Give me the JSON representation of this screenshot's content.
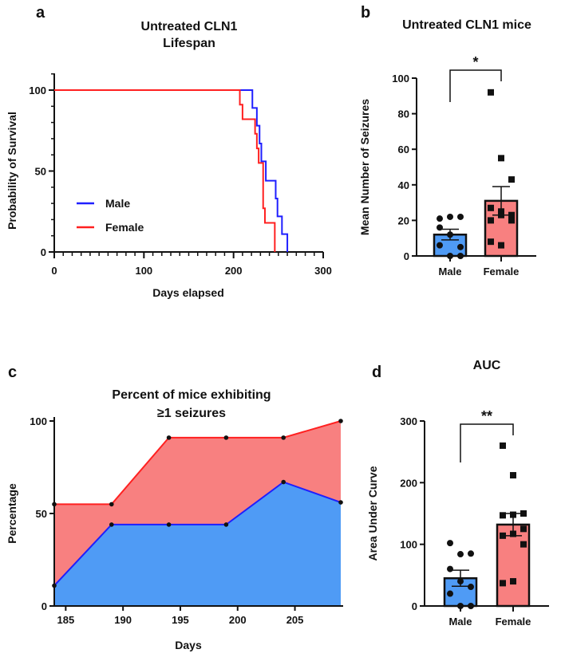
{
  "colors": {
    "male_line": "#1f1fff",
    "female_line": "#ff2020",
    "male_bar": "#4f9bf5",
    "female_bar": "#f88080",
    "male_area": "#4f9bf5",
    "female_area": "#f88080"
  },
  "chart_data": [
    {
      "panel": "a",
      "type": "line",
      "step": true,
      "title": [
        "Untreated CLN1",
        "Lifespan"
      ],
      "xlabel": "Days elapsed",
      "ylabel": "Probability of Survival",
      "xlim": [
        0,
        300
      ],
      "ylim": [
        0,
        100
      ],
      "xticks": [
        "0",
        "100",
        "200",
        "300"
      ],
      "yticks": [
        "0",
        "50",
        "100"
      ],
      "legend": "lower-left",
      "series": [
        {
          "name": "Male",
          "color": "#1f1fff",
          "x": [
            0,
            221,
            226,
            229,
            231,
            236,
            247,
            249,
            254,
            260
          ],
          "y": [
            100,
            89,
            78,
            67,
            56,
            44,
            33,
            22,
            11,
            0
          ]
        },
        {
          "name": "Female",
          "color": "#ff2020",
          "x": [
            0,
            207,
            210,
            224,
            226,
            228,
            230,
            233,
            235,
            246
          ],
          "y": [
            100,
            91,
            82,
            73,
            64,
            55,
            55,
            27,
            18,
            0
          ]
        }
      ]
    },
    {
      "panel": "b",
      "type": "bar",
      "title": "Untreated CLN1 mice",
      "ylabel": "Mean Number of Seizures",
      "ylim": [
        0,
        100
      ],
      "yticks": [
        "0",
        "20",
        "40",
        "60",
        "80",
        "100"
      ],
      "categories": [
        "Male",
        "Female"
      ],
      "values": [
        12,
        31
      ],
      "sem": [
        3,
        8
      ],
      "points": [
        [
          21,
          22,
          22,
          16,
          12,
          5,
          6,
          0,
          0
        ],
        [
          92,
          55,
          43,
          27,
          25,
          23,
          20,
          23,
          20,
          8,
          6
        ]
      ],
      "significance": "*"
    },
    {
      "panel": "c",
      "type": "area",
      "title": [
        "Percent of mice exhibiting",
        "≥1 seizures"
      ],
      "xlabel": "Days",
      "ylabel": "Percentage",
      "xlim": [
        184,
        209
      ],
      "ylim": [
        0,
        100
      ],
      "xticks": [
        "185",
        "190",
        "195",
        "200",
        "205"
      ],
      "yticks": [
        "0",
        "50",
        "100"
      ],
      "x": [
        184,
        189,
        194,
        199,
        204,
        209
      ],
      "series": [
        {
          "color": "#ff2020",
          "fill": "#f88080",
          "values": [
            55,
            55,
            91,
            91,
            91,
            100
          ]
        },
        {
          "color": "#1f1fff",
          "fill": "#4f9bf5",
          "values": [
            11,
            44,
            44,
            44,
            67,
            56
          ]
        }
      ]
    },
    {
      "panel": "d",
      "type": "bar",
      "title": "AUC",
      "ylabel": "Area Under  Curve",
      "ylim": [
        0,
        300
      ],
      "yticks": [
        "0",
        "100",
        "200",
        "300"
      ],
      "categories": [
        "Male",
        "Female"
      ],
      "values": [
        45,
        132
      ],
      "sem": [
        13,
        18
      ],
      "points": [
        [
          102,
          84,
          85,
          60,
          40,
          31,
          20,
          0,
          0
        ],
        [
          260,
          212,
          150,
          147,
          148,
          125,
          114,
          117,
          100,
          37,
          40
        ]
      ],
      "significance": "**"
    }
  ]
}
